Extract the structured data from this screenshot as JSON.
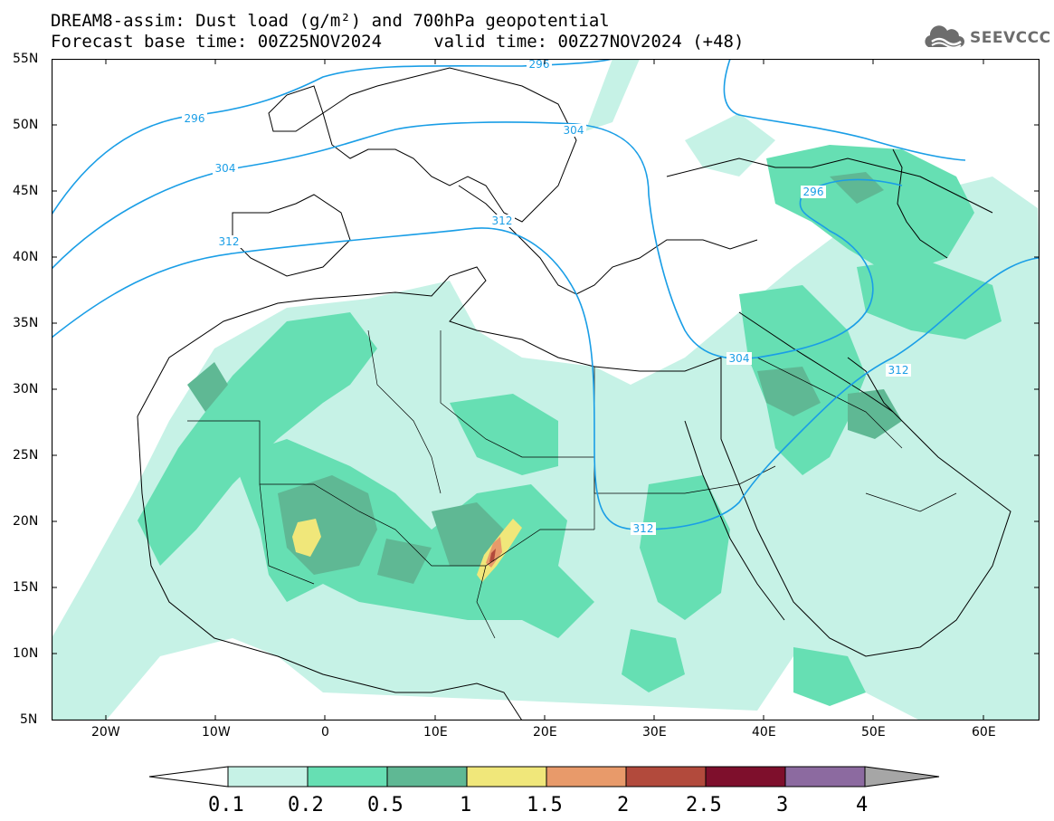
{
  "header": {
    "title_line1": "DREAM8-assim: Dust load (g/m²) and 700hPa geopotential",
    "title_line2": "Forecast base time: 00Z25NOV2024     valid time: 00Z27NOV2024 (+48)"
  },
  "brand": {
    "name": "SEEVCCC",
    "icon": "cloud-logo-icon"
  },
  "map": {
    "lat_labels": [
      "55N",
      "50N",
      "45N",
      "40N",
      "35N",
      "30N",
      "25N",
      "20N",
      "15N",
      "10N",
      "5N"
    ],
    "lon_labels": [
      "20W",
      "10W",
      "0",
      "10E",
      "20E",
      "30E",
      "40E",
      "50E",
      "60E"
    ],
    "contour_labels": [
      "296",
      "296",
      "304",
      "304",
      "312",
      "312",
      "296",
      "304",
      "312",
      "312"
    ],
    "contour_color": "#1a9ee6"
  },
  "legend": {
    "ticks": [
      "0.1",
      "0.2",
      "0.5",
      "1",
      "1.5",
      "2",
      "2.5",
      "3",
      "4"
    ],
    "colors": [
      "#c6f2e6",
      "#66dfb3",
      "#5fb894",
      "#f0e77a",
      "#e89a6a",
      "#b24a3c",
      "#7e0f2c",
      "#8c6aa0",
      "#a6a6a6"
    ]
  }
}
